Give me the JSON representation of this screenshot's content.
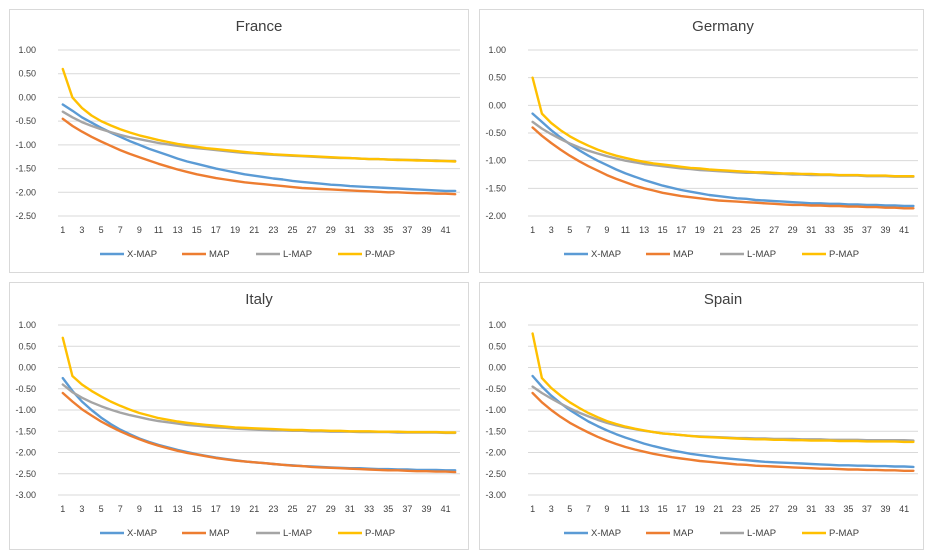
{
  "colors": {
    "X-MAP": "#5b9bd5",
    "MAP": "#ed7d31",
    "L-MAP": "#a5a5a5",
    "P-MAP": "#ffc000",
    "grid": "#d9d9d9",
    "text": "#404040"
  },
  "chart_data": [
    {
      "type": "line",
      "title": "France",
      "legend": "bottom",
      "grid": true,
      "ylim": [
        -2.5,
        1.0
      ],
      "yticks": [
        "1.00",
        "0.50",
        "0.00",
        "-0.50",
        "-1.00",
        "-1.50",
        "-2.00",
        "-2.50"
      ],
      "ytick_values": [
        1.0,
        0.5,
        0.0,
        -0.5,
        -1.0,
        -1.5,
        -2.0,
        -2.5
      ],
      "xticks": [
        "1",
        "3",
        "5",
        "7",
        "9",
        "11",
        "13",
        "15",
        "17",
        "19",
        "21",
        "23",
        "25",
        "27",
        "29",
        "31",
        "33",
        "35",
        "37",
        "39",
        "41"
      ],
      "x_count": 42,
      "series": [
        {
          "name": "X-MAP",
          "values": [
            -0.15,
            -0.28,
            -0.42,
            -0.53,
            -0.64,
            -0.74,
            -0.83,
            -0.92,
            -1.0,
            -1.08,
            -1.15,
            -1.22,
            -1.29,
            -1.35,
            -1.4,
            -1.45,
            -1.5,
            -1.54,
            -1.58,
            -1.62,
            -1.65,
            -1.68,
            -1.71,
            -1.73,
            -1.76,
            -1.78,
            -1.8,
            -1.82,
            -1.84,
            -1.85,
            -1.87,
            -1.88,
            -1.89,
            -1.9,
            -1.91,
            -1.92,
            -1.93,
            -1.94,
            -1.95,
            -1.96,
            -1.97,
            -1.97
          ]
        },
        {
          "name": "MAP",
          "values": [
            -0.45,
            -0.6,
            -0.72,
            -0.83,
            -0.93,
            -1.02,
            -1.11,
            -1.19,
            -1.26,
            -1.33,
            -1.4,
            -1.46,
            -1.52,
            -1.57,
            -1.62,
            -1.66,
            -1.7,
            -1.73,
            -1.76,
            -1.79,
            -1.81,
            -1.83,
            -1.85,
            -1.87,
            -1.89,
            -1.91,
            -1.92,
            -1.93,
            -1.94,
            -1.95,
            -1.96,
            -1.97,
            -1.98,
            -1.99,
            -2.0,
            -2.0,
            -2.01,
            -2.02,
            -2.02,
            -2.03,
            -2.03,
            -2.04
          ]
        },
        {
          "name": "L-MAP",
          "values": [
            -0.3,
            -0.42,
            -0.52,
            -0.6,
            -0.67,
            -0.73,
            -0.79,
            -0.84,
            -0.88,
            -0.92,
            -0.96,
            -0.99,
            -1.02,
            -1.05,
            -1.07,
            -1.09,
            -1.11,
            -1.13,
            -1.15,
            -1.17,
            -1.18,
            -1.2,
            -1.21,
            -1.22,
            -1.23,
            -1.24,
            -1.25,
            -1.26,
            -1.27,
            -1.28,
            -1.28,
            -1.29,
            -1.3,
            -1.3,
            -1.31,
            -1.31,
            -1.32,
            -1.32,
            -1.33,
            -1.33,
            -1.34,
            -1.34
          ]
        },
        {
          "name": "P-MAP",
          "values": [
            0.6,
            0.0,
            -0.22,
            -0.38,
            -0.5,
            -0.59,
            -0.67,
            -0.74,
            -0.8,
            -0.85,
            -0.9,
            -0.94,
            -0.98,
            -1.01,
            -1.04,
            -1.07,
            -1.09,
            -1.11,
            -1.13,
            -1.15,
            -1.17,
            -1.18,
            -1.2,
            -1.21,
            -1.22,
            -1.23,
            -1.24,
            -1.25,
            -1.26,
            -1.27,
            -1.28,
            -1.29,
            -1.3,
            -1.3,
            -1.31,
            -1.32,
            -1.32,
            -1.33,
            -1.33,
            -1.34,
            -1.34,
            -1.35
          ]
        }
      ]
    },
    {
      "type": "line",
      "title": "Germany",
      "legend": "bottom",
      "grid": true,
      "ylim": [
        -2.0,
        1.0
      ],
      "yticks": [
        "1.00",
        "0.50",
        "0.00",
        "-0.50",
        "-1.00",
        "-1.50",
        "-2.00"
      ],
      "ytick_values": [
        1.0,
        0.5,
        0.0,
        -0.5,
        -1.0,
        -1.5,
        -2.0
      ],
      "xticks": [
        "1",
        "3",
        "5",
        "7",
        "9",
        "11",
        "13",
        "15",
        "17",
        "19",
        "21",
        "23",
        "25",
        "27",
        "29",
        "31",
        "33",
        "35",
        "37",
        "39",
        "41"
      ],
      "x_count": 42,
      "series": [
        {
          "name": "X-MAP",
          "values": [
            -0.15,
            -0.3,
            -0.45,
            -0.58,
            -0.7,
            -0.81,
            -0.91,
            -1.0,
            -1.08,
            -1.16,
            -1.23,
            -1.29,
            -1.35,
            -1.4,
            -1.45,
            -1.49,
            -1.53,
            -1.56,
            -1.59,
            -1.62,
            -1.64,
            -1.66,
            -1.68,
            -1.69,
            -1.71,
            -1.72,
            -1.73,
            -1.74,
            -1.75,
            -1.76,
            -1.77,
            -1.77,
            -1.78,
            -1.78,
            -1.79,
            -1.79,
            -1.8,
            -1.8,
            -1.81,
            -1.81,
            -1.82,
            -1.82
          ]
        },
        {
          "name": "MAP",
          "values": [
            -0.4,
            -0.55,
            -0.68,
            -0.8,
            -0.91,
            -1.01,
            -1.1,
            -1.18,
            -1.26,
            -1.33,
            -1.39,
            -1.45,
            -1.5,
            -1.54,
            -1.58,
            -1.61,
            -1.64,
            -1.66,
            -1.68,
            -1.7,
            -1.72,
            -1.73,
            -1.74,
            -1.75,
            -1.76,
            -1.77,
            -1.78,
            -1.79,
            -1.8,
            -1.8,
            -1.81,
            -1.81,
            -1.82,
            -1.82,
            -1.83,
            -1.83,
            -1.84,
            -1.84,
            -1.85,
            -1.85,
            -1.86,
            -1.86
          ]
        },
        {
          "name": "L-MAP",
          "values": [
            -0.3,
            -0.42,
            -0.52,
            -0.61,
            -0.69,
            -0.76,
            -0.82,
            -0.87,
            -0.92,
            -0.96,
            -1.0,
            -1.03,
            -1.06,
            -1.08,
            -1.1,
            -1.12,
            -1.14,
            -1.15,
            -1.17,
            -1.18,
            -1.19,
            -1.2,
            -1.21,
            -1.22,
            -1.22,
            -1.23,
            -1.24,
            -1.24,
            -1.25,
            -1.25,
            -1.26,
            -1.26,
            -1.26,
            -1.27,
            -1.27,
            -1.27,
            -1.28,
            -1.28,
            -1.28,
            -1.29,
            -1.29,
            -1.29
          ]
        },
        {
          "name": "P-MAP",
          "values": [
            0.5,
            -0.15,
            -0.32,
            -0.45,
            -0.56,
            -0.65,
            -0.73,
            -0.8,
            -0.86,
            -0.91,
            -0.95,
            -0.99,
            -1.02,
            -1.05,
            -1.07,
            -1.09,
            -1.11,
            -1.13,
            -1.14,
            -1.16,
            -1.17,
            -1.18,
            -1.19,
            -1.2,
            -1.21,
            -1.21,
            -1.22,
            -1.23,
            -1.23,
            -1.24,
            -1.24,
            -1.25,
            -1.25,
            -1.26,
            -1.26,
            -1.26,
            -1.27,
            -1.27,
            -1.27,
            -1.28,
            -1.28,
            -1.28
          ]
        }
      ]
    },
    {
      "type": "line",
      "title": "Italy",
      "legend": "bottom",
      "grid": true,
      "ylim": [
        -3.0,
        1.0
      ],
      "yticks": [
        "1.00",
        "0.50",
        "0.00",
        "-0.50",
        "-1.00",
        "-1.50",
        "-2.00",
        "-2.50",
        "-3.00"
      ],
      "ytick_values": [
        1.0,
        0.5,
        0.0,
        -0.5,
        -1.0,
        -1.5,
        -2.0,
        -2.5,
        -3.0
      ],
      "xticks": [
        "1",
        "3",
        "5",
        "7",
        "9",
        "11",
        "13",
        "15",
        "17",
        "19",
        "21",
        "23",
        "25",
        "27",
        "29",
        "31",
        "33",
        "35",
        "37",
        "39",
        "41"
      ],
      "x_count": 42,
      "series": [
        {
          "name": "X-MAP",
          "values": [
            -0.25,
            -0.55,
            -0.8,
            -1.0,
            -1.18,
            -1.33,
            -1.46,
            -1.57,
            -1.67,
            -1.75,
            -1.82,
            -1.88,
            -1.94,
            -1.99,
            -2.04,
            -2.08,
            -2.12,
            -2.15,
            -2.18,
            -2.21,
            -2.23,
            -2.25,
            -2.27,
            -2.29,
            -2.3,
            -2.32,
            -2.33,
            -2.34,
            -2.35,
            -2.36,
            -2.37,
            -2.37,
            -2.38,
            -2.39,
            -2.39,
            -2.4,
            -2.4,
            -2.41,
            -2.41,
            -2.41,
            -2.42,
            -2.42
          ]
        },
        {
          "name": "MAP",
          "values": [
            -0.6,
            -0.8,
            -0.98,
            -1.13,
            -1.27,
            -1.39,
            -1.5,
            -1.6,
            -1.69,
            -1.77,
            -1.84,
            -1.9,
            -1.96,
            -2.01,
            -2.05,
            -2.09,
            -2.13,
            -2.16,
            -2.19,
            -2.21,
            -2.23,
            -2.25,
            -2.27,
            -2.29,
            -2.31,
            -2.32,
            -2.34,
            -2.35,
            -2.36,
            -2.37,
            -2.38,
            -2.39,
            -2.4,
            -2.41,
            -2.42,
            -2.42,
            -2.43,
            -2.44,
            -2.44,
            -2.45,
            -2.45,
            -2.46
          ]
        },
        {
          "name": "L-MAP",
          "values": [
            -0.4,
            -0.58,
            -0.71,
            -0.82,
            -0.91,
            -0.99,
            -1.06,
            -1.12,
            -1.17,
            -1.22,
            -1.26,
            -1.29,
            -1.32,
            -1.35,
            -1.37,
            -1.39,
            -1.41,
            -1.42,
            -1.44,
            -1.45,
            -1.46,
            -1.47,
            -1.48,
            -1.48,
            -1.49,
            -1.49,
            -1.5,
            -1.5,
            -1.51,
            -1.51,
            -1.51,
            -1.52,
            -1.52,
            -1.52,
            -1.52,
            -1.53,
            -1.53,
            -1.53,
            -1.53,
            -1.53,
            -1.54,
            -1.54
          ]
        },
        {
          "name": "P-MAP",
          "values": [
            0.7,
            -0.2,
            -0.4,
            -0.55,
            -0.68,
            -0.8,
            -0.9,
            -0.99,
            -1.07,
            -1.13,
            -1.19,
            -1.23,
            -1.27,
            -1.3,
            -1.33,
            -1.35,
            -1.37,
            -1.39,
            -1.41,
            -1.42,
            -1.43,
            -1.44,
            -1.45,
            -1.46,
            -1.47,
            -1.47,
            -1.48,
            -1.48,
            -1.49,
            -1.49,
            -1.5,
            -1.5,
            -1.5,
            -1.51,
            -1.51,
            -1.51,
            -1.52,
            -1.52,
            -1.52,
            -1.52,
            -1.53,
            -1.53
          ]
        }
      ]
    },
    {
      "type": "line",
      "title": "Spain",
      "legend": "bottom",
      "grid": true,
      "ylim": [
        -3.0,
        1.0
      ],
      "yticks": [
        "1.00",
        "0.50",
        "0.00",
        "-0.50",
        "-1.00",
        "-1.50",
        "-2.00",
        "-2.50",
        "-3.00"
      ],
      "ytick_values": [
        1.0,
        0.5,
        0.0,
        -0.5,
        -1.0,
        -1.5,
        -2.0,
        -2.5,
        -3.0
      ],
      "xticks": [
        "1",
        "3",
        "5",
        "7",
        "9",
        "11",
        "13",
        "15",
        "17",
        "19",
        "21",
        "23",
        "25",
        "27",
        "29",
        "31",
        "33",
        "35",
        "37",
        "39",
        "41"
      ],
      "x_count": 42,
      "series": [
        {
          "name": "X-MAP",
          "values": [
            -0.2,
            -0.45,
            -0.66,
            -0.84,
            -1.0,
            -1.14,
            -1.27,
            -1.38,
            -1.48,
            -1.57,
            -1.65,
            -1.72,
            -1.79,
            -1.85,
            -1.9,
            -1.95,
            -1.99,
            -2.03,
            -2.06,
            -2.09,
            -2.12,
            -2.14,
            -2.16,
            -2.18,
            -2.2,
            -2.22,
            -2.23,
            -2.24,
            -2.25,
            -2.26,
            -2.27,
            -2.28,
            -2.29,
            -2.3,
            -2.3,
            -2.31,
            -2.31,
            -2.32,
            -2.32,
            -2.33,
            -2.33,
            -2.34
          ]
        },
        {
          "name": "MAP",
          "values": [
            -0.6,
            -0.82,
            -1.0,
            -1.16,
            -1.3,
            -1.42,
            -1.53,
            -1.63,
            -1.72,
            -1.8,
            -1.87,
            -1.93,
            -1.98,
            -2.03,
            -2.07,
            -2.11,
            -2.14,
            -2.17,
            -2.2,
            -2.22,
            -2.24,
            -2.26,
            -2.28,
            -2.29,
            -2.31,
            -2.32,
            -2.33,
            -2.34,
            -2.35,
            -2.36,
            -2.37,
            -2.38,
            -2.38,
            -2.39,
            -2.4,
            -2.4,
            -2.41,
            -2.41,
            -2.42,
            -2.42,
            -2.43,
            -2.43
          ]
        },
        {
          "name": "L-MAP",
          "values": [
            -0.45,
            -0.6,
            -0.73,
            -0.85,
            -0.96,
            -1.06,
            -1.15,
            -1.23,
            -1.3,
            -1.36,
            -1.41,
            -1.45,
            -1.49,
            -1.52,
            -1.55,
            -1.57,
            -1.59,
            -1.61,
            -1.62,
            -1.63,
            -1.64,
            -1.65,
            -1.66,
            -1.66,
            -1.67,
            -1.67,
            -1.68,
            -1.68,
            -1.68,
            -1.69,
            -1.69,
            -1.69,
            -1.7,
            -1.7,
            -1.7,
            -1.7,
            -1.71,
            -1.71,
            -1.71,
            -1.71,
            -1.71,
            -1.72
          ]
        },
        {
          "name": "P-MAP",
          "values": [
            0.8,
            -0.25,
            -0.48,
            -0.66,
            -0.82,
            -0.95,
            -1.07,
            -1.17,
            -1.26,
            -1.33,
            -1.39,
            -1.44,
            -1.48,
            -1.52,
            -1.55,
            -1.57,
            -1.59,
            -1.61,
            -1.63,
            -1.64,
            -1.65,
            -1.66,
            -1.67,
            -1.68,
            -1.69,
            -1.69,
            -1.7,
            -1.7,
            -1.71,
            -1.71,
            -1.72,
            -1.72,
            -1.72,
            -1.73,
            -1.73,
            -1.73,
            -1.74,
            -1.74,
            -1.74,
            -1.74,
            -1.75,
            -1.75
          ]
        }
      ]
    }
  ]
}
